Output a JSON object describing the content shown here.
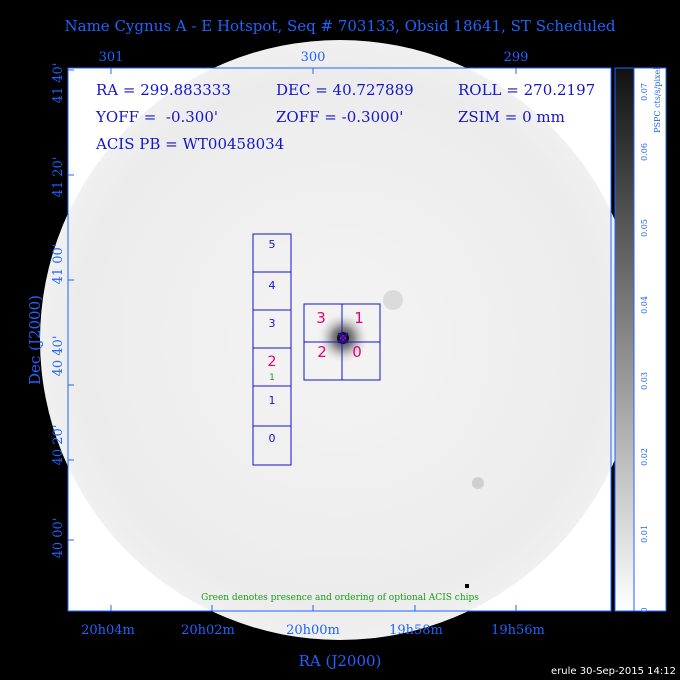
{
  "title": "Name Cygnus A - E Hotspot, Seq # 703133, Obsid 18641, ST Scheduled",
  "top_ticks": [
    "301",
    "300",
    "299"
  ],
  "x_ticks": [
    "20h04m",
    "20h02m",
    "20h00m",
    "19h58m",
    "19h56m"
  ],
  "y_ticks": [
    "41 40'",
    "41 20'",
    "41 00'",
    "40 40'",
    "40 20'",
    "40 00'"
  ],
  "xlabel": "RA (J2000)",
  "ylabel": "Dec (J2000)",
  "info": {
    "line1a": "RA = 299.883333",
    "line1b": "DEC = 40.727889",
    "line1c": "ROLL = 270.2197",
    "line2a": "YOFF =  -0.300'",
    "line2b": "ZOFF = -0.3000'",
    "line2c": "ZSIM = 0 mm",
    "line3": "ACIS PB = WT00458034"
  },
  "acis_s_chips": [
    "5",
    "4",
    "3",
    "2",
    "1",
    "0"
  ],
  "acis_s_optional": "1",
  "acis_i_chips": [
    "3",
    "1",
    "2",
    "0"
  ],
  "note": "Green denotes presence and ordering of optional ACIS chips",
  "colorbar": {
    "label": "PSPC cts/s/pixel",
    "ticks": [
      "0.07",
      "0.06",
      "0.05",
      "0.04",
      "0.03",
      "0.02",
      "0.01",
      "0"
    ]
  },
  "footer": "erule 30-Sep-2015 14:12",
  "colors": {
    "axis": "#1e64ff",
    "chips": "#1515c8",
    "acis_i_label": "#e8006e",
    "optional": "#1a9a1a"
  }
}
